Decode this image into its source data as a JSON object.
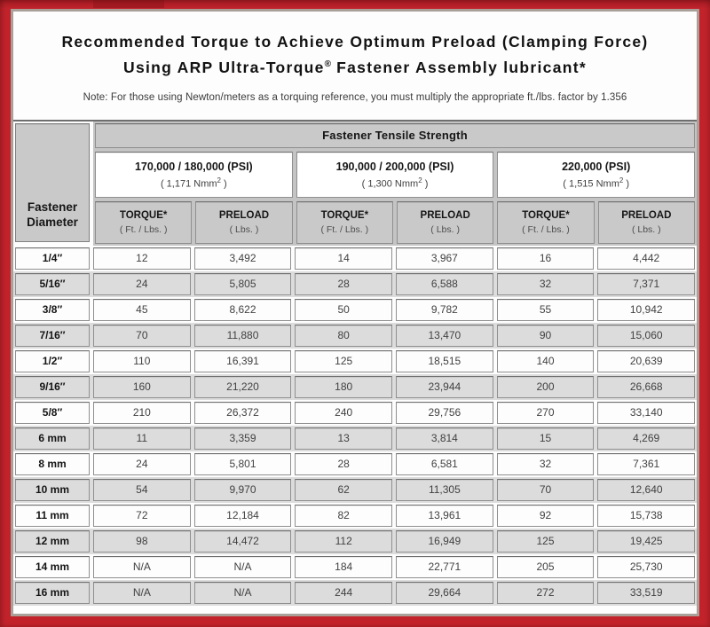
{
  "colors": {
    "frame_red": "#c2232b",
    "frame_red_dark": "#8f161c",
    "panel_border": "#a8a099",
    "header_gray": "#c9c9c9",
    "row_gray": "#dcdcdc",
    "row_white": "#fdfdfd"
  },
  "title": {
    "line1": "Recommended Torque to Achieve Optimum Preload (Clamping Force)",
    "line2_prefix": "Using ARP Ultra-Torque",
    "line2_sup": "®",
    "line2_suffix": " Fastener Assembly lubricant*",
    "note": "Note: For those using Newton/meters as a torquing reference, you must multiply the appropriate ft./lbs. factor by 1.356"
  },
  "table": {
    "corner": {
      "line1": "Fastener",
      "line2": "Diameter"
    },
    "group_header": "Fastener Tensile Strength",
    "strength_groups": [
      {
        "psi": "170,000 / 180,000 (PSI)",
        "nmm_prefix": "( 1,171 Nmm",
        "nmm_sup": "2",
        "nmm_suffix": " )"
      },
      {
        "psi": "190,000 / 200,000 (PSI)",
        "nmm_prefix": "( 1,300 Nmm",
        "nmm_sup": "2",
        "nmm_suffix": " )"
      },
      {
        "psi": "220,000 (PSI)",
        "nmm_prefix": "( 1,515 Nmm",
        "nmm_sup": "2",
        "nmm_suffix": " )"
      }
    ],
    "col_headers": {
      "torque_label": "TORQUE*",
      "torque_sub": "( Ft. / Lbs. )",
      "preload_label": "PRELOAD",
      "preload_sub": "( Lbs. )"
    },
    "rows": [
      {
        "label": "1/4″",
        "values": [
          "12",
          "3,492",
          "14",
          "3,967",
          "16",
          "4,442"
        ]
      },
      {
        "label": "5/16″",
        "values": [
          "24",
          "5,805",
          "28",
          "6,588",
          "32",
          "7,371"
        ]
      },
      {
        "label": "3/8″",
        "values": [
          "45",
          "8,622",
          "50",
          "9,782",
          "55",
          "10,942"
        ]
      },
      {
        "label": "7/16″",
        "values": [
          "70",
          "11,880",
          "80",
          "13,470",
          "90",
          "15,060"
        ]
      },
      {
        "label": "1/2″",
        "values": [
          "110",
          "16,391",
          "125",
          "18,515",
          "140",
          "20,639"
        ]
      },
      {
        "label": "9/16″",
        "values": [
          "160",
          "21,220",
          "180",
          "23,944",
          "200",
          "26,668"
        ]
      },
      {
        "label": "5/8″",
        "values": [
          "210",
          "26,372",
          "240",
          "29,756",
          "270",
          "33,140"
        ]
      },
      {
        "label": "6 mm",
        "values": [
          "11",
          "3,359",
          "13",
          "3,814",
          "15",
          "4,269"
        ]
      },
      {
        "label": "8 mm",
        "values": [
          "24",
          "5,801",
          "28",
          "6,581",
          "32",
          "7,361"
        ]
      },
      {
        "label": "10 mm",
        "values": [
          "54",
          "9,970",
          "62",
          "11,305",
          "70",
          "12,640"
        ]
      },
      {
        "label": "11 mm",
        "values": [
          "72",
          "12,184",
          "82",
          "13,961",
          "92",
          "15,738"
        ]
      },
      {
        "label": "12 mm",
        "values": [
          "98",
          "14,472",
          "112",
          "16,949",
          "125",
          "19,425"
        ]
      },
      {
        "label": "14 mm",
        "values": [
          "N/A",
          "N/A",
          "184",
          "22,771",
          "205",
          "25,730"
        ]
      },
      {
        "label": "16 mm",
        "values": [
          "N/A",
          "N/A",
          "244",
          "29,664",
          "272",
          "33,519"
        ]
      }
    ]
  },
  "chart_data": {
    "type": "table",
    "title": "Recommended Torque to Achieve Optimum Preload (Clamping Force) Using ARP Ultra-Torque Fastener Assembly lubricant*",
    "columns": [
      "Fastener Diameter",
      "Torque Ft./Lbs. (170,000/180,000 PSI)",
      "Preload Lbs. (170,000/180,000 PSI)",
      "Torque Ft./Lbs. (190,000/200,000 PSI)",
      "Preload Lbs. (190,000/200,000 PSI)",
      "Torque Ft./Lbs. (220,000 PSI)",
      "Preload Lbs. (220,000 PSI)"
    ],
    "rows": [
      [
        "1/4″",
        "12",
        "3,492",
        "14",
        "3,967",
        "16",
        "4,442"
      ],
      [
        "5/16″",
        "24",
        "5,805",
        "28",
        "6,588",
        "32",
        "7,371"
      ],
      [
        "3/8″",
        "45",
        "8,622",
        "50",
        "9,782",
        "55",
        "10,942"
      ],
      [
        "7/16″",
        "70",
        "11,880",
        "80",
        "13,470",
        "90",
        "15,060"
      ],
      [
        "1/2″",
        "110",
        "16,391",
        "125",
        "18,515",
        "140",
        "20,639"
      ],
      [
        "9/16″",
        "160",
        "21,220",
        "180",
        "23,944",
        "200",
        "26,668"
      ],
      [
        "5/8″",
        "210",
        "26,372",
        "240",
        "29,756",
        "270",
        "33,140"
      ],
      [
        "6 mm",
        "11",
        "3,359",
        "13",
        "3,814",
        "15",
        "4,269"
      ],
      [
        "8 mm",
        "24",
        "5,801",
        "28",
        "6,581",
        "32",
        "7,361"
      ],
      [
        "10 mm",
        "54",
        "9,970",
        "62",
        "11,305",
        "70",
        "12,640"
      ],
      [
        "11 mm",
        "72",
        "12,184",
        "82",
        "13,961",
        "92",
        "15,738"
      ],
      [
        "12 mm",
        "98",
        "14,472",
        "112",
        "16,949",
        "125",
        "19,425"
      ],
      [
        "14 mm",
        "N/A",
        "N/A",
        "184",
        "22,771",
        "205",
        "25,730"
      ],
      [
        "16 mm",
        "N/A",
        "N/A",
        "244",
        "29,664",
        "272",
        "33,519"
      ]
    ]
  }
}
